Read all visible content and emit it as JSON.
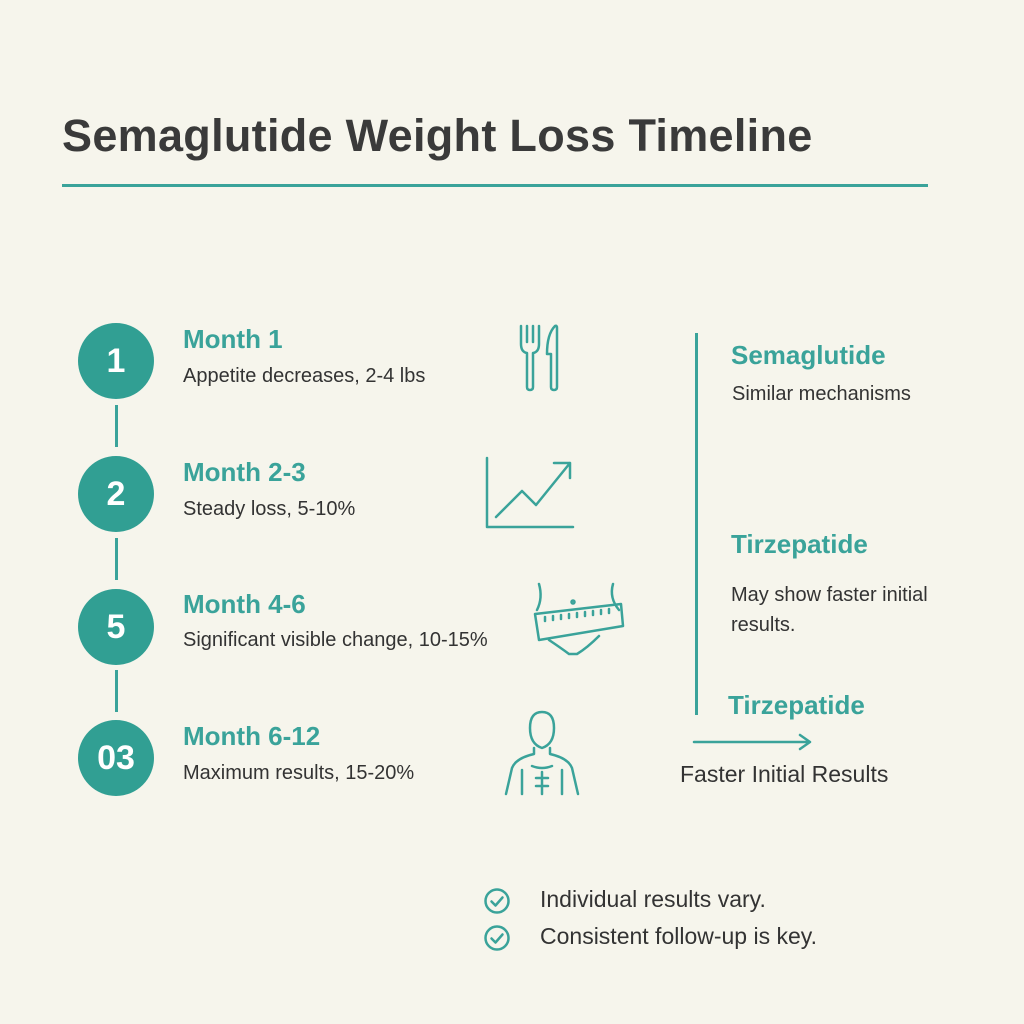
{
  "title": "Semaglutide Weight Loss Timeline",
  "accent_color": "#3aa39a",
  "timeline": [
    {
      "badge": "1",
      "heading": "Month 1",
      "description": "Appetite decreases, 2-4 lbs",
      "icon": "fork-knife-icon"
    },
    {
      "badge": "2",
      "heading": "Month 2-3",
      "description": "Steady loss, 5-10%",
      "icon": "trend-chart-icon"
    },
    {
      "badge": "5",
      "heading": "Month 4-6",
      "description": "Significant visible change, 10-15%",
      "icon": "waist-measuring-tape-icon"
    },
    {
      "badge": "03",
      "heading": "Month 6-12",
      "description": "Maximum results, 15-20%",
      "icon": "fit-body-icon"
    }
  ],
  "comparison": {
    "items": [
      {
        "heading": "Semaglutide",
        "description": "Similar mechanisms"
      },
      {
        "heading": "Tirzepatide",
        "description": "May show faster initial results."
      }
    ],
    "arrow_heading": "Tirzepatide",
    "arrow_label": "Faster Initial Results"
  },
  "notes": [
    "Individual results vary.",
    "Consistent follow-up is key."
  ]
}
